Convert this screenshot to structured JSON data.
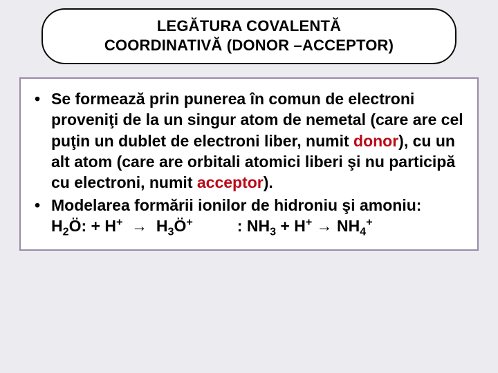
{
  "colors": {
    "page_bg": "#ececf0",
    "box_bg": "#ffffff",
    "box_border": "#9a8aa8",
    "title_border": "#0a0a0a",
    "text": "#000000",
    "accent_red": "#bb0a18"
  },
  "typography": {
    "title_fontsize_pt": 17,
    "body_fontsize_pt": 17,
    "font_family": "Arial",
    "font_weight": "700"
  },
  "title": {
    "line1": "LEGĂTURA COVALENTĂ",
    "line2": "COORDINATIVĂ (DONOR –ACCEPTOR)"
  },
  "bullet1": {
    "seg1": "Se formează prin punerea în comun de electroni proveniţi de la un singur atom de nemetal (care are cel puţin un dublet de electroni liber, numit ",
    "donor": "donor",
    "seg2": "),  cu un alt atom (care are orbitali atomici liberi şi nu participă cu electroni, numit ",
    "acceptor": "acceptor",
    "seg3": ")."
  },
  "bullet2": {
    "intro": "Modelarea formării ionilor de hidroniu şi amoniu:",
    "eq1": {
      "lhs_a": "H",
      "lhs_a_sub": "2",
      "lhs_a_tail": "Ö:  +  H",
      "lhs_a_sup": "+",
      "arrow": "→",
      "rhs_a": "H",
      "rhs_a_sub": "3",
      "rhs_a_tail": "Ö",
      "rhs_a_sup": "+"
    },
    "eq2": {
      "lhs_b": ": NH",
      "lhs_b_sub": "3",
      "lhs_b_tail": "  +  H",
      "lhs_b_sup": "+",
      "arrow": "→",
      "rhs_b": "NH",
      "rhs_b_sub": "4",
      "rhs_b_sup": "+"
    }
  }
}
